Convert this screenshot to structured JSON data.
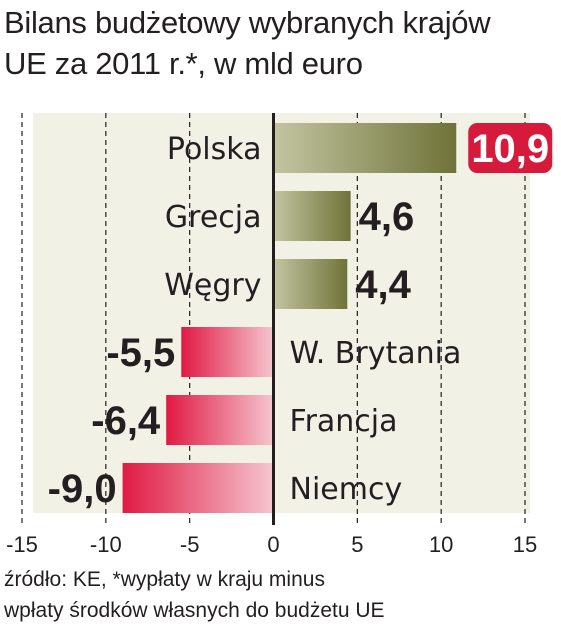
{
  "title": {
    "line1": "Bilans budżetowy wybranych krajów",
    "line2": "UE za 2011 r.*, w mld euro"
  },
  "source": {
    "line1": "źródło: KE, *wypłaty w kraju minus",
    "line2": "wpłaty środków własnych do budżetu UE"
  },
  "colors": {
    "positive_bar": "#7a7e44",
    "negative_bar": "#e4173f",
    "highlight_badge": "#d61a3c",
    "panel_background": "#f1f1e6"
  },
  "chart_data": {
    "type": "bar",
    "orientation": "horizontal",
    "categories": [
      "Polska",
      "Grecja",
      "Węgry",
      "W. Brytania",
      "Francja",
      "Niemcy"
    ],
    "values": [
      10.9,
      4.6,
      4.4,
      -5.5,
      -6.4,
      -9.0
    ],
    "value_labels": [
      "10,9",
      "4,6",
      "4,4",
      "-5,5",
      "-6,4",
      "-9,0"
    ],
    "highlighted_category": "Polska",
    "xlim": [
      -15,
      15
    ],
    "xticks": [
      -15,
      -10,
      -5,
      0,
      5,
      10,
      15
    ],
    "xtick_labels": [
      "-15",
      "-10",
      "-5",
      "0",
      "5",
      "10",
      "15"
    ],
    "gridlines": "dashed vertical",
    "title": "Bilans budżetowy wybranych krajów UE za 2011 r.*, w mld euro",
    "xlabel": "",
    "ylabel": ""
  }
}
